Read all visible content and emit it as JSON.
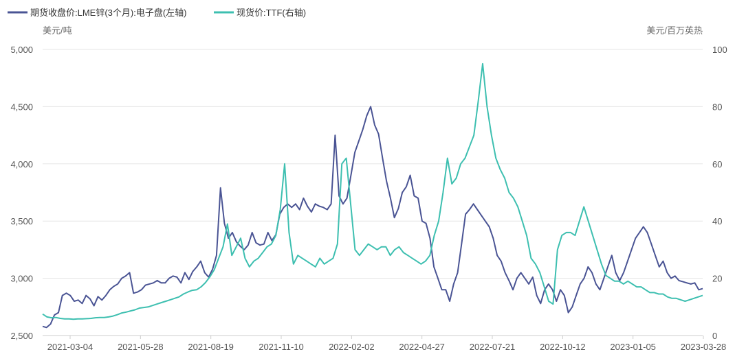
{
  "chart_data": {
    "type": "line",
    "legend_position": "top-left",
    "grid": true,
    "y_left_unit": "美元/吨",
    "y_right_unit": "美元/百万英热",
    "y_left_range": [
      2500,
      5000
    ],
    "y_left_ticks": [
      "2,500",
      "3,000",
      "3,500",
      "4,000",
      "4,500",
      "5,000"
    ],
    "y_right_range": [
      0,
      100
    ],
    "y_right_ticks": [
      "0",
      "20",
      "40",
      "60",
      "80",
      "100"
    ],
    "x_tick_labels": [
      "2021-03-04",
      "2021-05-28",
      "2021-08-19",
      "2021-11-10",
      "2022-02-02",
      "2022-04-27",
      "2022-07-21",
      "2022-10-12",
      "2023-01-05",
      "2023-03-28"
    ],
    "series": [
      {
        "name": "期货收盘价:LME锌(3个月):电子盘(左轴)",
        "axis": "left",
        "color": "#4a5494",
        "values": [
          2580,
          2570,
          2600,
          2680,
          2700,
          2850,
          2870,
          2850,
          2800,
          2810,
          2780,
          2850,
          2820,
          2760,
          2840,
          2810,
          2850,
          2900,
          2930,
          2950,
          3000,
          3020,
          3050,
          2870,
          2880,
          2900,
          2940,
          2950,
          2960,
          2980,
          2960,
          2960,
          3000,
          3020,
          3010,
          2960,
          3050,
          2990,
          3060,
          3100,
          3150,
          3050,
          3010,
          3080,
          3200,
          3790,
          3480,
          3350,
          3400,
          3320,
          3280,
          3250,
          3290,
          3400,
          3310,
          3290,
          3300,
          3400,
          3330,
          3380,
          3560,
          3620,
          3650,
          3620,
          3650,
          3600,
          3700,
          3630,
          3580,
          3650,
          3630,
          3620,
          3600,
          3650,
          4250,
          3720,
          3650,
          3700,
          3900,
          4100,
          4200,
          4300,
          4420,
          4500,
          4340,
          4260,
          4050,
          3850,
          3700,
          3530,
          3610,
          3750,
          3800,
          3900,
          3720,
          3700,
          3500,
          3480,
          3350,
          3100,
          3000,
          2900,
          2900,
          2800,
          2950,
          3050,
          3300,
          3560,
          3600,
          3650,
          3600,
          3550,
          3500,
          3450,
          3350,
          3200,
          3150,
          3050,
          2980,
          2900,
          3000,
          3050,
          3000,
          2950,
          3010,
          2850,
          2780,
          2900,
          2950,
          2900,
          2800,
          2900,
          2850,
          2700,
          2750,
          2850,
          2950,
          3000,
          3100,
          3050,
          2950,
          2900,
          3000,
          3100,
          3200,
          3050,
          2980,
          3050,
          3150,
          3250,
          3350,
          3400,
          3450,
          3400,
          3300,
          3200,
          3100,
          3150,
          3050,
          3000,
          3020,
          2980,
          2970,
          2960,
          2950,
          2960,
          2900,
          2910
        ]
      },
      {
        "name": "现货价:TTF(右轴)",
        "axis": "right",
        "color": "#3dbfb0",
        "values": [
          7.5,
          6.5,
          6.2,
          6.3,
          6.0,
          5.8,
          5.8,
          5.7,
          5.8,
          5.8,
          5.9,
          6.0,
          6.2,
          6.3,
          6.3,
          6.5,
          6.8,
          7.3,
          7.9,
          8.2,
          8.6,
          9.0,
          9.6,
          9.8,
          10.0,
          10.5,
          11.0,
          11.5,
          12.0,
          12.5,
          13.0,
          13.5,
          14.5,
          15.2,
          15.8,
          16.0,
          17.0,
          18.5,
          20.5,
          23.0,
          27.0,
          31.0,
          39.0,
          28.0,
          31.0,
          34.0,
          27.0,
          24.0,
          26.0,
          27.0,
          29.0,
          31.0,
          32.0,
          35.0,
          44.0,
          60.0,
          36.0,
          25.0,
          28.0,
          27.0,
          26.0,
          25.0,
          24.0,
          27.0,
          25.0,
          26.0,
          27.0,
          32.0,
          60.0,
          62.0,
          46.0,
          30.0,
          28.0,
          30.0,
          32.0,
          31.0,
          30.0,
          31.0,
          31.0,
          28.0,
          30.0,
          31.0,
          29.0,
          28.0,
          27.0,
          26.0,
          25.0,
          26.0,
          28.0,
          35.0,
          40.0,
          50.0,
          62.0,
          53.0,
          55.0,
          60.0,
          62.0,
          66.0,
          70.0,
          82.0,
          95.0,
          80.0,
          70.0,
          62.0,
          58.0,
          55.0,
          50.0,
          48.0,
          45.0,
          40.0,
          35.0,
          27.0,
          25.0,
          22.0,
          17.0,
          12.0,
          11.0,
          30.0,
          35.0,
          36.0,
          36.0,
          35.0,
          40.0,
          45.0,
          40.0,
          35.0,
          30.0,
          25.0,
          21.0,
          20.0,
          19.0,
          19.0,
          18.0,
          19.0,
          18.0,
          17.0,
          17.0,
          16.0,
          15.0,
          15.0,
          14.5,
          14.5,
          13.5,
          13.0,
          13.0,
          12.5,
          12.0,
          12.5,
          13.0,
          13.5,
          14.0
        ]
      }
    ]
  }
}
